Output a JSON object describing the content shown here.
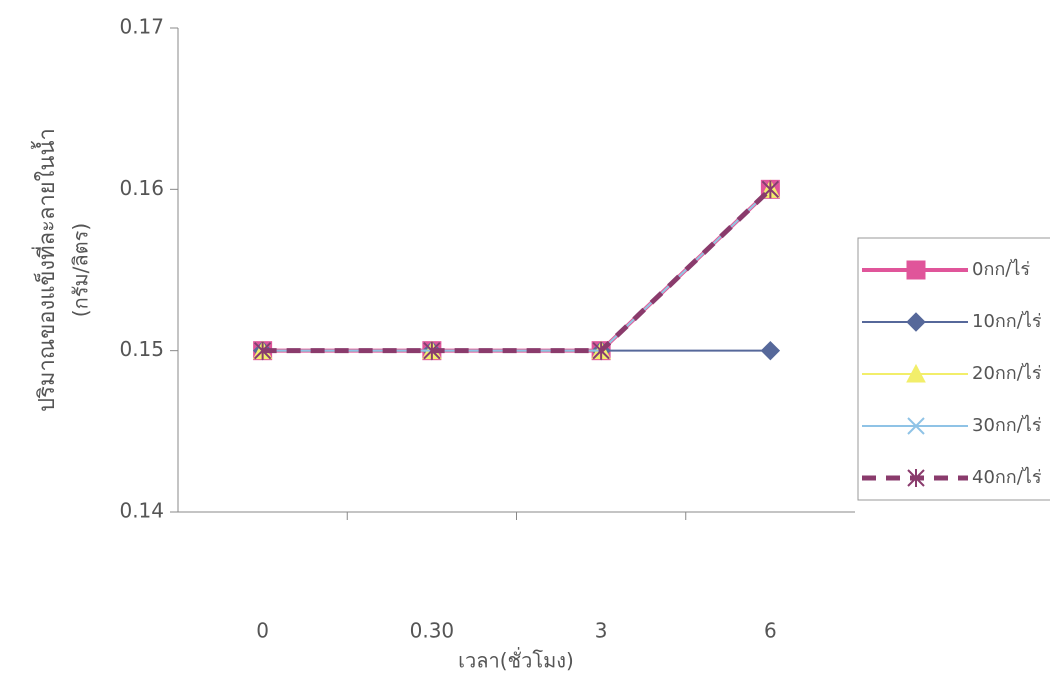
{
  "chart_data": {
    "type": "line",
    "y_label": "ปริมาณของแข็งที่ละลายในน้ำ",
    "y_label_unit": "(กรัม/ลิตร)",
    "x_label": "เวลา(ชั่วโมง)",
    "categories": [
      "0",
      "0.30",
      "3",
      "6"
    ],
    "series": [
      {
        "name": "0กก/ไร่",
        "color": "#e0559a",
        "marker": "square",
        "values": [
          0.15,
          0.15,
          0.15,
          0.16
        ]
      },
      {
        "name": "10กก/ไร่",
        "color": "#56689a",
        "marker": "diamond",
        "values": [
          0.15,
          0.15,
          0.15,
          0.15
        ]
      },
      {
        "name": "20กก/ไร่",
        "color": "#f2ee6a",
        "marker": "triangle",
        "values": [
          0.15,
          0.15,
          0.15,
          0.16
        ]
      },
      {
        "name": "30กก/ไร่",
        "color": "#8fc3e6",
        "marker": "x",
        "values": [
          0.15,
          0.15,
          0.15,
          0.16
        ]
      },
      {
        "name": "40กก/ไร่",
        "color": "#8a3b6c",
        "marker": "star",
        "dashed": true,
        "values": [
          0.15,
          0.15,
          0.15,
          0.16
        ]
      }
    ],
    "ylim": [
      0.14,
      0.17
    ],
    "yticks": [
      0.14,
      0.15,
      0.16,
      0.17
    ],
    "grid": false,
    "legend": "right"
  }
}
